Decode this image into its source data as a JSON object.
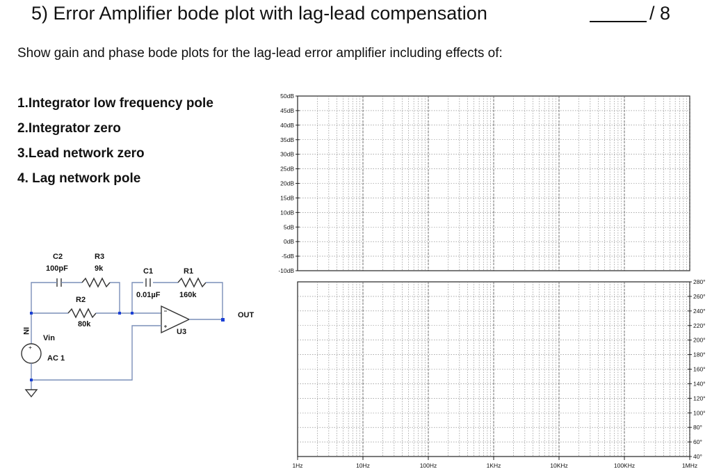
{
  "header": {
    "title": "5) Error Amplifier bode plot with lag-lead compensation",
    "score": "/ 8"
  },
  "instructions": "Show gain and phase bode plots for the lag-lead error amplifier including effects of:",
  "effects": [
    "1.Integrator low frequency pole",
    "2.Integrator zero",
    "3.Lead network zero",
    "4. Lag network pole"
  ],
  "circuit": {
    "c2_name": "C2",
    "c2_value": "100pF",
    "r3_name": "R3",
    "r3_value": "9k",
    "r2_name": "R2",
    "r2_value": "80k",
    "c1_name": "C1",
    "c1_value": "0.01µF",
    "r1_name": "R1",
    "r1_value": "160k",
    "opamp_name": "U3",
    "output_label": "OUT",
    "input_label": "IN",
    "source_name": "Vin",
    "source_value": "AC 1",
    "plus_sign": "+"
  },
  "gain_axis": {
    "labels": [
      "50dB",
      "45dB",
      "40dB",
      "35dB",
      "30dB",
      "25dB",
      "20dB",
      "15dB",
      "10dB",
      "5dB",
      "0dB",
      "-5dB",
      "-10dB"
    ]
  },
  "phase_axis": {
    "labels": [
      "280°",
      "260°",
      "240°",
      "220°",
      "200°",
      "180°",
      "160°",
      "140°",
      "120°",
      "100°",
      "80°",
      "60°",
      "40°"
    ]
  },
  "freq_axis": {
    "labels": [
      "1Hz",
      "10Hz",
      "100Hz",
      "1KHz",
      "10KHz",
      "100KHz",
      "1MHz"
    ]
  }
}
